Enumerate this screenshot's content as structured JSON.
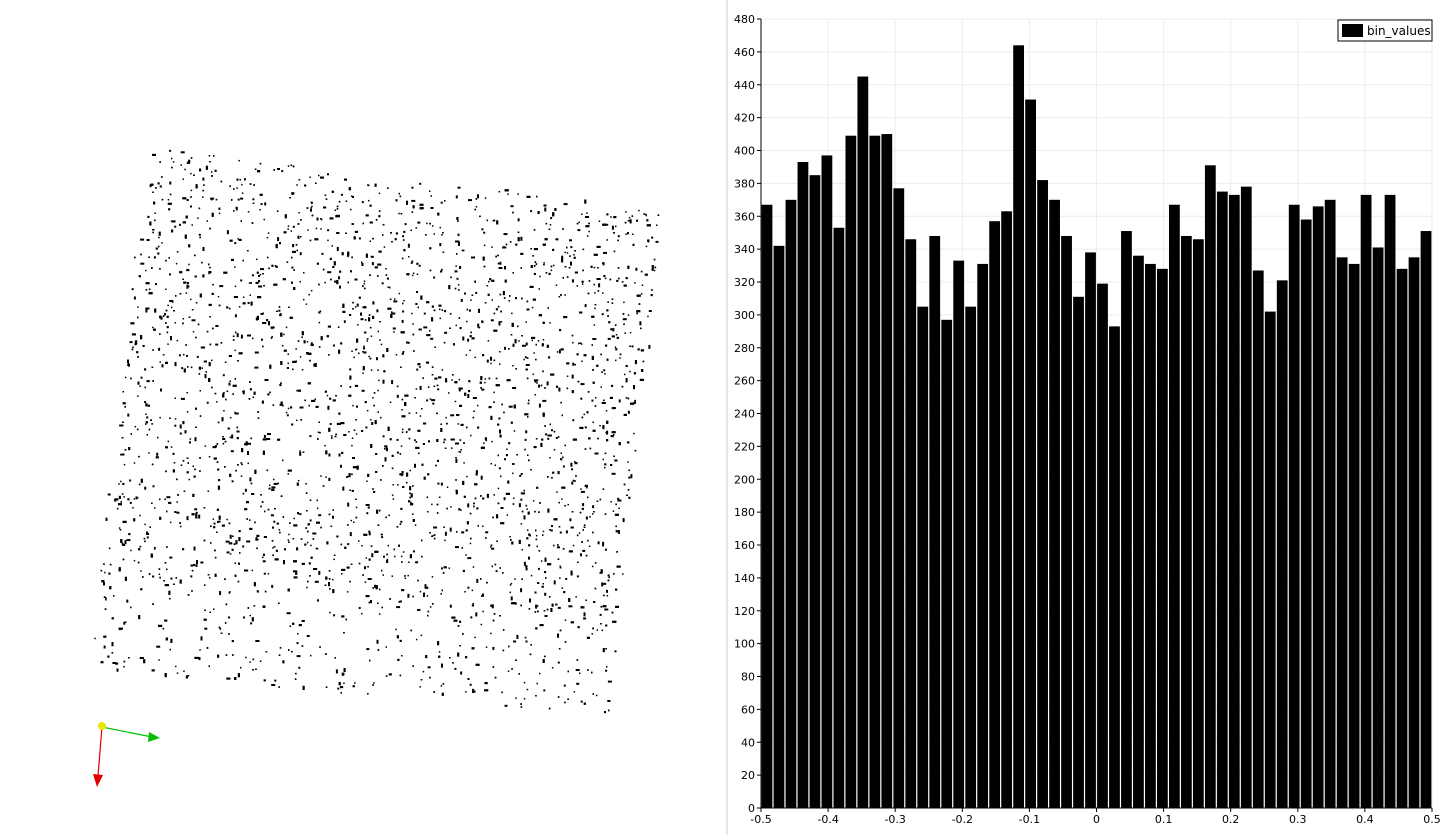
{
  "chart_data": {
    "type": "bar",
    "title": "",
    "xlabel": "",
    "ylabel": "",
    "legend": {
      "entries": [
        "bin_values"
      ],
      "placement": "top-right"
    },
    "series": [
      {
        "name": "bin_values",
        "color": "#000000",
        "values": [
          367,
          342,
          370,
          393,
          385,
          397,
          353,
          409,
          445,
          409,
          410,
          377,
          346,
          305,
          348,
          297,
          333,
          305,
          331,
          357,
          363,
          464,
          431,
          382,
          370,
          348,
          311,
          338,
          319,
          293,
          351,
          336,
          331,
          328,
          367,
          348,
          346,
          391,
          375,
          373,
          378,
          327,
          302,
          321,
          367,
          358,
          366,
          370,
          335,
          331,
          373,
          341,
          373,
          328,
          335,
          351
        ]
      }
    ],
    "xlim": [
      -0.5,
      0.5
    ],
    "ylim": [
      0,
      480
    ],
    "x_ticks": [
      -0.5,
      -0.4,
      -0.3,
      -0.2,
      -0.1,
      0,
      0.1,
      0.2,
      0.3,
      0.4,
      0.5
    ],
    "x_tick_labels": [
      "-0.5",
      "-0.4",
      "-0.3",
      "-0.2",
      "-0.1",
      "0",
      "0.1",
      "0.2",
      "0.3",
      "0.4",
      "0.5"
    ],
    "y_ticks": [
      0,
      20,
      40,
      60,
      80,
      100,
      120,
      140,
      160,
      180,
      200,
      220,
      240,
      260,
      280,
      300,
      320,
      340,
      360,
      380,
      400,
      420,
      440,
      460,
      480
    ],
    "y_tick_labels": [
      "0",
      "20",
      "40",
      "60",
      "80",
      "100",
      "120",
      "140",
      "160",
      "180",
      "200",
      "220",
      "240",
      "260",
      "280",
      "300",
      "320",
      "340",
      "360",
      "380",
      "400",
      "420",
      "440",
      "460",
      "480"
    ],
    "grid": true
  },
  "orientation_axes": {
    "x_color": "#00c000",
    "y_color": "#e8e800",
    "z_color": "#e00000"
  },
  "point_cloud": {
    "color": "#000000"
  }
}
